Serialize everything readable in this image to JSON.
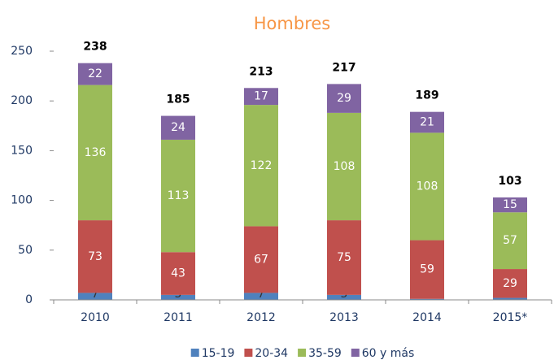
{
  "chart_data": {
    "type": "stacked_bar",
    "title": "Hombres",
    "categories": [
      "2010",
      "2011",
      "2012",
      "2013",
      "2014",
      "2015*"
    ],
    "series": [
      {
        "name": "15-19",
        "color": "#4f81bd",
        "values": [
          7,
          5,
          7,
          5,
          1,
          2
        ]
      },
      {
        "name": "20-34",
        "color": "#c0504d",
        "values": [
          73,
          43,
          67,
          75,
          59,
          29
        ]
      },
      {
        "name": "35-59",
        "color": "#9bbb59",
        "values": [
          136,
          113,
          122,
          108,
          108,
          57
        ]
      },
      {
        "name": "60 y más",
        "color": "#8064a2",
        "values": [
          22,
          24,
          17,
          29,
          21,
          15
        ]
      }
    ],
    "totals": [
      238,
      185,
      213,
      217,
      189,
      103
    ],
    "ylim": [
      0,
      250
    ],
    "yticks": [
      0,
      50,
      100,
      150,
      200,
      250
    ],
    "grid": false,
    "legend": "bottom"
  }
}
